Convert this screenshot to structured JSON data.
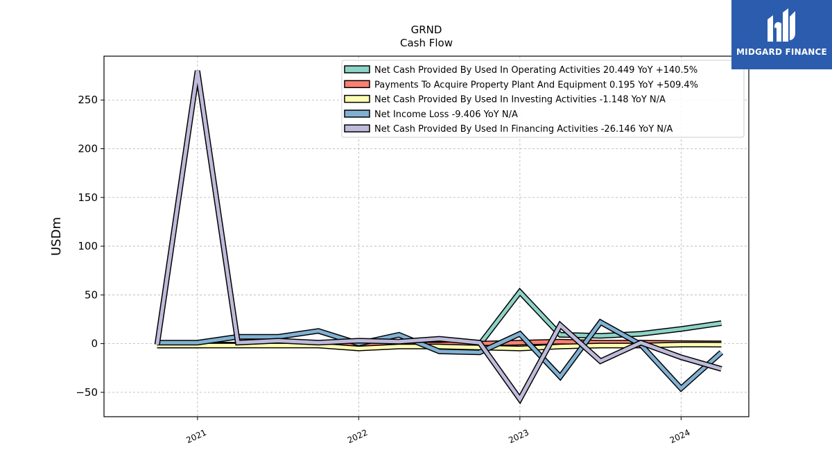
{
  "chart_data": {
    "type": "line",
    "title": "GRND",
    "subtitle": "Cash Flow",
    "ylabel": "USDm",
    "xlabel": "",
    "ylim": [
      -75,
      295
    ],
    "xlim": [
      2020.42,
      2024.42
    ],
    "yticks": [
      -50,
      0,
      50,
      100,
      150,
      200,
      250
    ],
    "xticks": [
      {
        "value": 2021,
        "label": "2021"
      },
      {
        "value": 2022,
        "label": "2022"
      },
      {
        "value": 2023,
        "label": "2023"
      },
      {
        "value": 2024,
        "label": "2024"
      }
    ],
    "grid": true,
    "legend_position": "top-right",
    "x": [
      2020.75,
      2021.0,
      2021.25,
      2021.5,
      2021.75,
      2022.0,
      2022.25,
      2022.5,
      2022.75,
      2023.0,
      2023.25,
      2023.5,
      2023.75,
      2024.0,
      2024.25
    ],
    "series": [
      {
        "name": "Net Cash Provided By Used In Operating Activities  20.449 YoY +140.5%",
        "color": "#8dd3c7",
        "values": [
          -2,
          -2,
          -1,
          -1,
          -1,
          -1,
          0,
          0,
          -1,
          53,
          9,
          8,
          10,
          15,
          21
        ]
      },
      {
        "name": "Payments To Acquire Property Plant And Equipment  0.195 YoY +509.4%",
        "color": "#fb8072",
        "values": [
          -1,
          -1,
          -1,
          -1,
          -1,
          -1,
          -1,
          -1,
          0,
          1,
          2,
          1,
          1,
          0.5,
          0.2
        ]
      },
      {
        "name": "Net Cash Provided By Used In Investing Activities  -1.148 YoY N/A",
        "color": "#ffffb3",
        "values": [
          -2,
          -2,
          -2,
          -2,
          -2,
          -5,
          -3,
          -3,
          -4,
          -5,
          -3,
          -2,
          -2,
          -1,
          -1.1
        ]
      },
      {
        "name": "Net Income Loss  -9.406 YoY N/A",
        "color": "#80b1d3",
        "values": [
          1,
          1,
          7,
          7,
          13,
          0,
          9,
          -8,
          -9,
          10,
          -34,
          22,
          -1,
          -46,
          -9
        ]
      },
      {
        "name": "Net Cash Provided By Used In Financing Activities  -26.146 YoY N/A",
        "color": "#bebada",
        "values": [
          -1,
          280,
          1,
          3,
          1,
          3,
          2,
          5,
          1,
          -57,
          19,
          -18,
          1,
          -14,
          -26
        ]
      }
    ]
  },
  "logo": {
    "text": "MIDGARD FINANCE",
    "color": "#2b5cae"
  }
}
